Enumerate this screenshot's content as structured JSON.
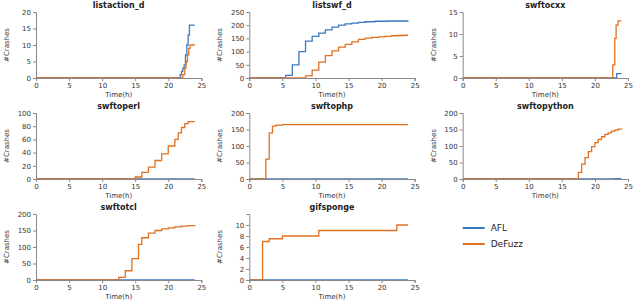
{
  "chart_data": [
    {
      "type": "step",
      "title": "listaction_d",
      "x_label": "Time(h)",
      "y_label": "#Crashes",
      "xlim": [
        0,
        25
      ],
      "xticks": [
        0,
        5,
        10,
        15,
        20,
        25
      ],
      "ylim": [
        0,
        20
      ],
      "yticks": [
        0,
        5,
        10,
        15,
        20
      ],
      "series": [
        {
          "name": "AFL",
          "color": "#3b78c4",
          "x": [
            0,
            21.8,
            21.8,
            22.0,
            22.2,
            22.4,
            22.6,
            22.8,
            23.0,
            23.2,
            23.5,
            24.0
          ],
          "values": [
            0,
            0,
            1,
            2,
            3,
            4,
            7,
            10,
            13,
            16,
            16,
            16
          ]
        },
        {
          "name": "DeFuzz",
          "color": "#e07020",
          "x": [
            0,
            22.0,
            22.2,
            22.5,
            22.7,
            22.9,
            23.1,
            23.3,
            24.0
          ],
          "values": [
            0,
            0,
            1,
            3,
            5,
            7,
            9,
            10,
            10
          ]
        }
      ]
    },
    {
      "type": "step",
      "title": "listswf_d",
      "x_label": "Time(h)",
      "y_label": "#Crashes",
      "xlim": [
        0,
        25
      ],
      "xticks": [
        0,
        5,
        10,
        15,
        20,
        25
      ],
      "ylim": [
        0,
        250
      ],
      "yticks": [
        0,
        50,
        100,
        150,
        200,
        250
      ],
      "series": [
        {
          "name": "AFL",
          "color": "#3b78c4",
          "x": [
            0,
            4.5,
            5.5,
            6.5,
            7.5,
            8.5,
            9.5,
            10.5,
            11.5,
            12.5,
            13.5,
            14.5,
            15.5,
            16.5,
            17.5,
            19.0,
            21.0,
            24.0
          ],
          "values": [
            0,
            0,
            10,
            50,
            100,
            140,
            158,
            170,
            182,
            193,
            200,
            205,
            208,
            211,
            213,
            215,
            216,
            217
          ]
        },
        {
          "name": "DeFuzz",
          "color": "#e07020",
          "x": [
            0,
            7.5,
            8.5,
            9.5,
            10.5,
            11.5,
            12.5,
            13.5,
            14.5,
            15.5,
            16.5,
            17.5,
            18.5,
            19.5,
            20.5,
            21.5,
            22.5,
            23.5,
            24.0
          ],
          "values": [
            0,
            0,
            8,
            30,
            60,
            85,
            103,
            117,
            127,
            137,
            146,
            151,
            154,
            156,
            158,
            160,
            161,
            162,
            162
          ]
        }
      ]
    },
    {
      "type": "step",
      "title": "swftocxx",
      "x_label": "Time(h)",
      "y_label": "#Crashes",
      "xlim": [
        0,
        25
      ],
      "xticks": [
        0,
        5,
        10,
        15,
        20,
        25
      ],
      "ylim": [
        0,
        15
      ],
      "yticks": [
        0,
        5,
        10,
        15
      ],
      "series": [
        {
          "name": "AFL",
          "color": "#3b78c4",
          "x": [
            0,
            23.2,
            23.3,
            24.0
          ],
          "values": [
            0,
            0,
            1,
            1
          ]
        },
        {
          "name": "DeFuzz",
          "color": "#e07020",
          "x": [
            0,
            22.5,
            22.7,
            23.0,
            23.2,
            23.5,
            24.0
          ],
          "values": [
            0,
            0,
            3,
            9,
            12,
            13,
            13
          ]
        }
      ]
    },
    {
      "type": "step",
      "title": "swftoperl",
      "x_label": "Time(h)",
      "y_label": "#Crashes",
      "xlim": [
        0,
        25
      ],
      "xticks": [
        0,
        5,
        10,
        15,
        20,
        25
      ],
      "ylim": [
        0,
        100
      ],
      "yticks": [
        0,
        20,
        40,
        60,
        80,
        100
      ],
      "series": [
        {
          "name": "AFL",
          "color": "#3b78c4",
          "x": [
            0,
            24.0
          ],
          "values": [
            0,
            0
          ]
        },
        {
          "name": "DeFuzz",
          "color": "#e07020",
          "x": [
            0,
            14.5,
            15.0,
            16.0,
            17.0,
            18.0,
            19.0,
            20.0,
            21.0,
            21.5,
            22.0,
            22.5,
            23.0,
            24.0
          ],
          "values": [
            0,
            0,
            3,
            10,
            18,
            28,
            38,
            50,
            60,
            70,
            78,
            84,
            87,
            87
          ]
        }
      ]
    },
    {
      "type": "step",
      "title": "swftophp",
      "x_label": "Time(h)",
      "y_label": "#Crashes",
      "xlim": [
        0,
        25
      ],
      "xticks": [
        0,
        5,
        10,
        15,
        20,
        25
      ],
      "ylim": [
        0,
        200
      ],
      "yticks": [
        0,
        50,
        100,
        150,
        200
      ],
      "series": [
        {
          "name": "AFL",
          "color": "#3b78c4",
          "x": [
            0,
            24.0
          ],
          "values": [
            0,
            0
          ]
        },
        {
          "name": "DeFuzz",
          "color": "#e07020",
          "x": [
            0,
            2.0,
            2.5,
            3.0,
            3.5,
            4.0,
            5.0,
            24.0
          ],
          "values": [
            0,
            0,
            60,
            140,
            160,
            163,
            165,
            165
          ]
        }
      ]
    },
    {
      "type": "step",
      "title": "swftopython",
      "x_label": "Time(h)",
      "y_label": "#Crashes",
      "xlim": [
        0,
        25
      ],
      "xticks": [
        0,
        5,
        10,
        15,
        20,
        25
      ],
      "ylim": [
        0,
        200
      ],
      "yticks": [
        0,
        50,
        100,
        150,
        200
      ],
      "series": [
        {
          "name": "AFL",
          "color": "#3b78c4",
          "x": [
            0,
            23.0,
            23.1,
            24.0
          ],
          "values": [
            0,
            0,
            1,
            1
          ]
        },
        {
          "name": "DeFuzz",
          "color": "#e07020",
          "x": [
            0,
            16.5,
            17.5,
            18.0,
            18.5,
            19.0,
            19.5,
            20.0,
            20.5,
            21.0,
            21.5,
            22.0,
            22.5,
            23.0,
            23.5,
            24.0
          ],
          "values": [
            0,
            0,
            20,
            45,
            65,
            83,
            98,
            110,
            120,
            128,
            135,
            140,
            145,
            148,
            151,
            153
          ]
        }
      ]
    },
    {
      "type": "step",
      "title": "swftotcl",
      "x_label": "Time(h)",
      "y_label": "#Crashes",
      "xlim": [
        0,
        25
      ],
      "xticks": [
        0,
        5,
        10,
        15,
        20,
        25
      ],
      "ylim": [
        0,
        200
      ],
      "yticks": [
        0,
        50,
        100,
        150,
        200
      ],
      "series": [
        {
          "name": "AFL",
          "color": "#3b78c4",
          "x": [
            0,
            24.0
          ],
          "values": [
            0,
            0
          ]
        },
        {
          "name": "DeFuzz",
          "color": "#e07020",
          "x": [
            0,
            11.5,
            12.5,
            13.5,
            14.5,
            15.5,
            16.0,
            17.0,
            18.0,
            19.0,
            20.0,
            21.0,
            22.0,
            23.0,
            24.0
          ],
          "values": [
            0,
            0,
            8,
            28,
            65,
            108,
            128,
            142,
            150,
            155,
            158,
            161,
            163,
            165,
            166
          ]
        }
      ]
    },
    {
      "type": "step",
      "title": "gifsponge",
      "x_label": "Time(h)",
      "y_label": "#Crashes",
      "xlim": [
        0,
        25
      ],
      "xticks": [
        0,
        5,
        10,
        15,
        20,
        25
      ],
      "ylim": [
        0,
        12
      ],
      "yticks": [
        0,
        2,
        4,
        6,
        8,
        10
      ],
      "series": [
        {
          "name": "AFL",
          "color": "#3b78c4",
          "x": [
            0,
            24.0
          ],
          "values": [
            0,
            0
          ]
        },
        {
          "name": "DeFuzz",
          "color": "#e07020",
          "x": [
            0,
            1.5,
            2.0,
            3.0,
            5.0,
            10.0,
            10.5,
            22.0,
            22.3,
            23.0,
            24.0
          ],
          "values": [
            0,
            0,
            7,
            7.5,
            8,
            8,
            9,
            9,
            10,
            10,
            10
          ]
        }
      ]
    }
  ]
}
